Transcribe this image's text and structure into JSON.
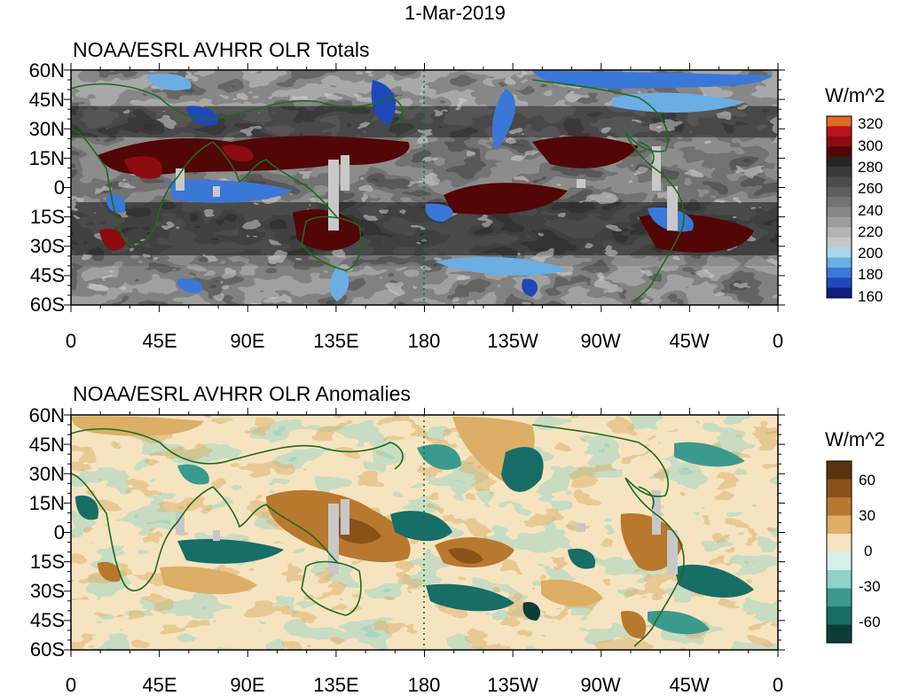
{
  "title": "1-Mar-2019",
  "panels": [
    {
      "id": "totals",
      "subtitle": "NOAA/ESRL AVHRR OLR Totals",
      "units": "W/m^2",
      "colorbar": {
        "labels": [
          "320",
          "300",
          "280",
          "260",
          "240",
          "220",
          "200",
          "180",
          "160"
        ],
        "colors": [
          "#e06a28",
          "#b8121a",
          "#8a0c10",
          "#520606",
          "#262626",
          "#3a3a3a",
          "#4c4c4c",
          "#5e5e5e",
          "#727272",
          "#878787",
          "#9c9c9c",
          "#b4b4b4",
          "#c6c6c6",
          "#a8d8ee",
          "#6aaee4",
          "#3a78d8",
          "#1e48b8",
          "#101e80"
        ]
      }
    },
    {
      "id": "anomalies",
      "subtitle": "NOAA/ESRL AVHRR OLR Anomalies",
      "units": "W/m^2",
      "colorbar": {
        "labels": [
          "60",
          "30",
          "0",
          "-30",
          "-60"
        ],
        "colors": [
          "#5a3410",
          "#8a5218",
          "#b8782e",
          "#dcae66",
          "#f6e4c0",
          "#d6f0ec",
          "#8fd2c6",
          "#3a9a8e",
          "#176e66",
          "#0a3e36"
        ]
      }
    }
  ],
  "axes": {
    "lat_labels": [
      "60N",
      "45N",
      "30N",
      "15N",
      "0",
      "15S",
      "30S",
      "45S",
      "60S"
    ],
    "lon_labels": [
      "0",
      "45E",
      "90E",
      "135E",
      "180",
      "135W",
      "90W",
      "45W",
      "0"
    ]
  }
}
